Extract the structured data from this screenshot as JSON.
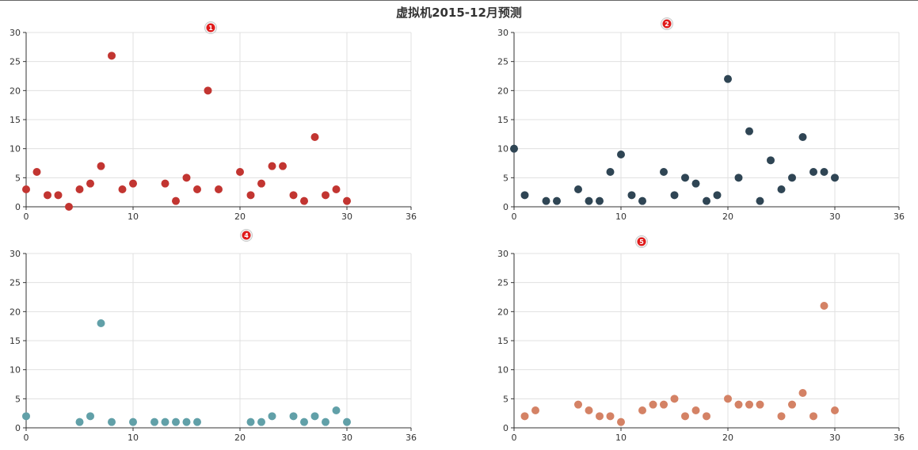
{
  "title": "虚拟机2015-12月预测",
  "colors": {
    "grid": "#e0e0e0",
    "axis": "#333333",
    "tick_text": "#333333",
    "marker_fill": "#e01b1b"
  },
  "chart_data": [
    {
      "type": "scatter",
      "marker_label": "1",
      "color": "#c23531",
      "xlim": [
        0,
        36
      ],
      "ylim": [
        0,
        30
      ],
      "xticks": [
        0,
        10,
        20,
        30,
        36
      ],
      "yticks": [
        0,
        5,
        10,
        15,
        20,
        25,
        30
      ],
      "grid": true,
      "x": [
        0,
        1,
        2,
        3,
        4,
        5,
        6,
        7,
        8,
        9,
        10,
        13,
        14,
        15,
        16,
        17,
        18,
        20,
        21,
        22,
        23,
        24,
        25,
        26,
        27,
        28,
        29,
        30
      ],
      "y": [
        3,
        6,
        2,
        2,
        0,
        3,
        4,
        7,
        26,
        3,
        4,
        4,
        1,
        5,
        3,
        20,
        3,
        6,
        2,
        4,
        7,
        7,
        2,
        1,
        12,
        2,
        3,
        1
      ]
    },
    {
      "type": "scatter",
      "marker_label": "2",
      "color": "#2f4554",
      "xlim": [
        0,
        36
      ],
      "ylim": [
        0,
        30
      ],
      "xticks": [
        0,
        10,
        20,
        30,
        36
      ],
      "yticks": [
        0,
        5,
        10,
        15,
        20,
        25,
        30
      ],
      "grid": true,
      "x": [
        0,
        1,
        3,
        4,
        6,
        7,
        8,
        9,
        10,
        11,
        12,
        14,
        15,
        16,
        17,
        18,
        19,
        20,
        21,
        22,
        23,
        24,
        25,
        26,
        27,
        28,
        29,
        30
      ],
      "y": [
        10,
        2,
        1,
        1,
        3,
        1,
        1,
        6,
        9,
        2,
        1,
        6,
        2,
        5,
        4,
        1,
        2,
        22,
        5,
        13,
        1,
        8,
        3,
        5,
        12,
        6,
        6,
        5
      ]
    },
    {
      "type": "scatter",
      "marker_label": "4",
      "color": "#61a0a8",
      "xlim": [
        0,
        36
      ],
      "ylim": [
        0,
        30
      ],
      "xticks": [
        0,
        10,
        20,
        30,
        36
      ],
      "yticks": [
        0,
        5,
        10,
        15,
        20,
        25,
        30
      ],
      "grid": true,
      "x": [
        0,
        5,
        6,
        7,
        8,
        10,
        12,
        13,
        14,
        15,
        16,
        21,
        22,
        23,
        25,
        26,
        27,
        28,
        29,
        30
      ],
      "y": [
        2,
        1,
        2,
        18,
        1,
        1,
        1,
        1,
        1,
        1,
        1,
        1,
        1,
        2,
        2,
        1,
        2,
        1,
        3,
        1
      ]
    },
    {
      "type": "scatter",
      "marker_label": "5",
      "color": "#d48265",
      "xlim": [
        0,
        36
      ],
      "ylim": [
        0,
        30
      ],
      "xticks": [
        0,
        10,
        20,
        30,
        36
      ],
      "yticks": [
        0,
        5,
        10,
        15,
        20,
        25,
        30
      ],
      "grid": true,
      "x": [
        1,
        2,
        6,
        7,
        8,
        9,
        10,
        12,
        13,
        14,
        15,
        16,
        17,
        18,
        20,
        21,
        22,
        23,
        25,
        26,
        27,
        28,
        29,
        30
      ],
      "y": [
        2,
        3,
        4,
        3,
        2,
        2,
        1,
        3,
        4,
        4,
        5,
        2,
        3,
        2,
        5,
        4,
        4,
        4,
        2,
        4,
        6,
        2,
        21,
        3
      ]
    }
  ]
}
